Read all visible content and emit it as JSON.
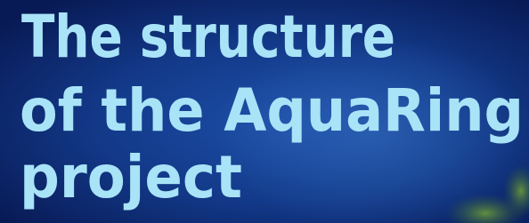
{
  "title_lines": [
    "The structure",
    "of the AquaRing",
    "project"
  ]
}
